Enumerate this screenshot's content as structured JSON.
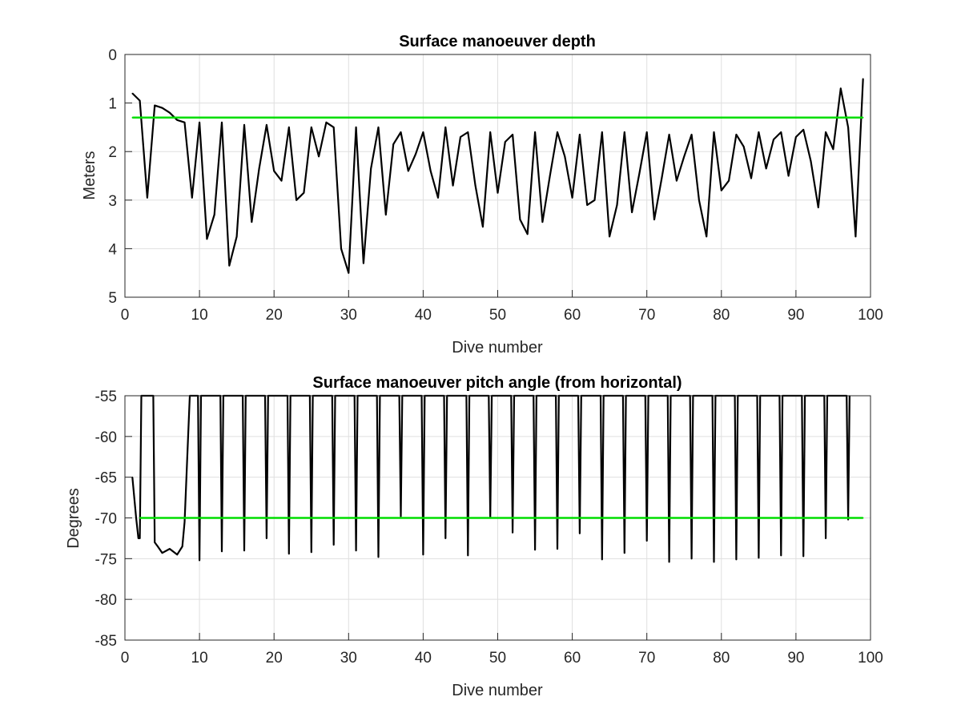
{
  "chart_data": [
    {
      "type": "line",
      "title": "Surface manoeuver depth",
      "xlabel": "Dive number",
      "ylabel": "Meters",
      "xlim": [
        0,
        100
      ],
      "ylim": [
        0,
        5
      ],
      "y_reversed": true,
      "grid": true,
      "xticks": [
        "0",
        "10",
        "20",
        "30",
        "40",
        "50",
        "60",
        "70",
        "80",
        "90",
        "100"
      ],
      "yticks": [
        "0",
        "1",
        "2",
        "3",
        "4",
        "5"
      ],
      "series": [
        {
          "color": "#000000",
          "x": [
            1,
            2,
            3,
            4,
            5,
            6,
            7,
            8,
            9,
            10,
            11,
            12,
            13,
            14,
            15,
            16,
            17,
            18,
            19,
            20,
            21,
            22,
            23,
            24,
            25,
            26,
            27,
            28,
            29,
            30,
            31,
            32,
            33,
            34,
            35,
            36,
            37,
            38,
            39,
            40,
            41,
            42,
            43,
            44,
            45,
            46,
            47,
            48,
            49,
            50,
            51,
            52,
            53,
            54,
            55,
            56,
            57,
            58,
            59,
            60,
            61,
            62,
            63,
            64,
            65,
            66,
            67,
            68,
            69,
            70,
            71,
            72,
            73,
            74,
            75,
            76,
            77,
            78,
            79,
            80,
            81,
            82,
            83,
            84,
            85,
            86,
            87,
            88,
            89,
            90,
            91,
            92,
            93,
            94,
            95,
            96,
            97,
            98,
            99
          ],
          "values": [
            0.8,
            0.95,
            2.95,
            1.05,
            1.1,
            1.2,
            1.35,
            1.4,
            2.95,
            1.4,
            3.8,
            3.3,
            1.4,
            4.35,
            3.75,
            1.45,
            3.45,
            2.35,
            1.45,
            2.4,
            2.6,
            1.5,
            3.0,
            2.85,
            1.5,
            2.1,
            1.4,
            1.5,
            4.0,
            4.5,
            1.5,
            4.3,
            2.35,
            1.5,
            3.3,
            1.85,
            1.6,
            2.4,
            2.05,
            1.6,
            2.4,
            2.95,
            1.5,
            2.7,
            1.7,
            1.6,
            2.7,
            3.55,
            1.6,
            2.85,
            1.8,
            1.65,
            3.4,
            3.7,
            1.6,
            3.45,
            2.5,
            1.6,
            2.1,
            2.95,
            1.65,
            3.1,
            3.0,
            1.6,
            3.75,
            3.1,
            1.6,
            3.25,
            2.45,
            1.6,
            3.4,
            2.55,
            1.65,
            2.6,
            2.1,
            1.65,
            3.0,
            3.75,
            1.6,
            2.8,
            2.6,
            1.65,
            1.9,
            2.55,
            1.6,
            2.35,
            1.75,
            1.6,
            2.5,
            1.7,
            1.55,
            2.2,
            3.15,
            1.6,
            1.95,
            0.7,
            1.5,
            3.75,
            0.5
          ]
        },
        {
          "color": "#00dd00",
          "x": [
            1,
            99
          ],
          "values": [
            1.3,
            1.3
          ]
        }
      ]
    },
    {
      "type": "line",
      "title": "Surface manoeuver pitch angle (from horizontal)",
      "xlabel": "Dive number",
      "ylabel": "Degrees",
      "xlim": [
        0,
        100
      ],
      "ylim": [
        -85,
        -55
      ],
      "grid": true,
      "xticks": [
        "0",
        "10",
        "20",
        "30",
        "40",
        "50",
        "60",
        "70",
        "80",
        "90",
        "100"
      ],
      "yticks": [
        "-55",
        "-60",
        "-65",
        "-70",
        "-75",
        "-80",
        "-85"
      ],
      "series": [
        {
          "color": "#000000",
          "x": [
            1,
            1.5,
            1.8,
            2,
            2.2,
            3,
            3.8,
            4,
            4.4,
            5,
            6,
            7,
            7.7,
            8,
            8.7,
            9.8,
            10,
            10.2,
            12.8,
            13,
            13.2,
            15.8,
            16,
            16.2,
            18.8,
            19,
            19.2,
            21.8,
            22,
            22.2,
            24.8,
            25,
            25.2,
            27.8,
            28,
            28.2,
            30.8,
            31,
            31.2,
            33.8,
            34,
            34.2,
            36.8,
            37,
            37.2,
            39.8,
            40,
            40.2,
            42.8,
            43,
            43.2,
            45.8,
            46,
            46.2,
            48.8,
            49,
            49.2,
            51.8,
            52,
            52.2,
            54.8,
            55,
            55.2,
            57.8,
            58,
            58.2,
            60.8,
            61,
            61.2,
            63.8,
            64,
            64.2,
            66.8,
            67,
            67.2,
            69.8,
            70,
            70.2,
            72.8,
            73,
            73.2,
            75.8,
            76,
            76.2,
            78.8,
            79,
            79.2,
            81.8,
            82,
            82.2,
            84.8,
            85,
            85.2,
            87.8,
            88,
            88.2,
            90.8,
            91,
            91.2,
            93.8,
            94,
            94.2,
            96.8,
            97,
            97.2
          ],
          "values": [
            -65,
            -70,
            -72.5,
            -72.5,
            -55,
            -55,
            -55,
            -73,
            -73.5,
            -74.3,
            -73.8,
            -74.5,
            -73.5,
            -70.5,
            -55,
            -55,
            -75.2,
            -55,
            -55,
            -74.1,
            -55,
            -55,
            -74,
            -55,
            -55,
            -72.5,
            -55,
            -55,
            -74.4,
            -55,
            -55,
            -74.2,
            -55,
            -55,
            -73.3,
            -55,
            -55,
            -74,
            -55,
            -55,
            -74.8,
            -55,
            -55,
            -69.8,
            -55,
            -55,
            -74.5,
            -55,
            -55,
            -72.5,
            -55,
            -55,
            -74.6,
            -55,
            -55,
            -70,
            -55,
            -55,
            -71.8,
            -55,
            -55,
            -73.9,
            -55,
            -55,
            -73.8,
            -55,
            -55,
            -71.9,
            -55,
            -55,
            -75.1,
            -55,
            -55,
            -74.3,
            -55,
            -55,
            -72.8,
            -55,
            -55,
            -75.4,
            -55,
            -55,
            -75,
            -55,
            -55,
            -75.4,
            -55,
            -55,
            -75.1,
            -55,
            -55,
            -74.9,
            -55,
            -55,
            -74.6,
            -55,
            -55,
            -74.7,
            -55,
            -55,
            -72.5,
            -55,
            -55,
            -70.2,
            -55
          ]
        },
        {
          "color": "#00dd00",
          "x": [
            2,
            99
          ],
          "values": [
            -70,
            -70
          ]
        }
      ]
    }
  ]
}
